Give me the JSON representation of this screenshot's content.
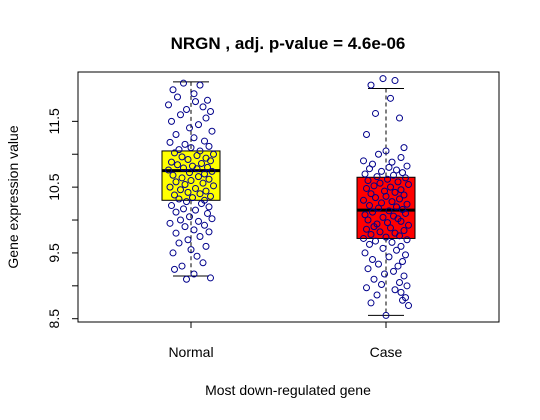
{
  "chart_data": {
    "type": "boxplot",
    "title": "NRGN , adj. p-value = 4.6e-06",
    "xlabel": "Most down-regulated gene",
    "ylabel": "Gene expression value",
    "categories": [
      "Normal",
      "Case"
    ],
    "ylim": [
      8.45,
      12.25
    ],
    "yticks": [
      "8.5",
      "9.5",
      "10.5",
      "11.5"
    ],
    "ytick_values": [
      8.5,
      9.5,
      10.5,
      11.5
    ],
    "grid": false,
    "legend": "none",
    "box_colors": [
      "#ffff00",
      "#ff0000"
    ],
    "point_color": "#00008b",
    "boxes": [
      {
        "name": "Normal",
        "whisker_low": 9.15,
        "q1": 10.3,
        "median": 10.75,
        "q3": 11.05,
        "whisker_high": 12.1,
        "points": [
          [
            -0.05,
            12.08
          ],
          [
            0.06,
            12.05
          ],
          [
            -0.12,
            11.98
          ],
          [
            0.02,
            11.92
          ],
          [
            -0.09,
            11.87
          ],
          [
            0.11,
            11.82
          ],
          [
            0.03,
            11.8
          ],
          [
            -0.15,
            11.75
          ],
          [
            0.08,
            11.72
          ],
          [
            -0.03,
            11.68
          ],
          [
            0.13,
            11.65
          ],
          [
            -0.07,
            11.6
          ],
          [
            0.1,
            11.55
          ],
          [
            -0.13,
            11.5
          ],
          [
            0.05,
            11.45
          ],
          [
            -0.01,
            11.4
          ],
          [
            0.14,
            11.35
          ],
          [
            -0.1,
            11.3
          ],
          [
            0.02,
            11.25
          ],
          [
            0.09,
            11.2
          ],
          [
            -0.14,
            11.18
          ],
          [
            -0.04,
            11.15
          ],
          [
            0.12,
            11.12
          ],
          [
            0.0,
            11.1
          ],
          [
            -0.08,
            11.07
          ],
          [
            0.06,
            11.05
          ],
          [
            -0.11,
            11.02
          ],
          [
            0.15,
            11.0
          ],
          [
            0.04,
            10.98
          ],
          [
            -0.06,
            10.96
          ],
          [
            0.1,
            10.94
          ],
          [
            -0.02,
            10.92
          ],
          [
            0.13,
            10.9
          ],
          [
            -0.13,
            10.88
          ],
          [
            0.07,
            10.86
          ],
          [
            -0.09,
            10.84
          ],
          [
            0.01,
            10.82
          ],
          [
            0.11,
            10.8
          ],
          [
            -0.05,
            10.79
          ],
          [
            0.04,
            10.78
          ],
          [
            -0.15,
            10.76
          ],
          [
            0.14,
            10.74
          ],
          [
            -0.01,
            10.72
          ],
          [
            0.09,
            10.7
          ],
          [
            -0.12,
            10.68
          ],
          [
            0.05,
            10.66
          ],
          [
            -0.06,
            10.64
          ],
          [
            0.12,
            10.62
          ],
          [
            0.0,
            10.6
          ],
          [
            -0.1,
            10.58
          ],
          [
            0.08,
            10.56
          ],
          [
            -0.04,
            10.54
          ],
          [
            0.15,
            10.52
          ],
          [
            -0.14,
            10.5
          ],
          [
            0.03,
            10.48
          ],
          [
            -0.07,
            10.46
          ],
          [
            0.1,
            10.44
          ],
          [
            -0.02,
            10.42
          ],
          [
            0.06,
            10.4
          ],
          [
            -0.11,
            10.38
          ],
          [
            0.13,
            10.36
          ],
          [
            0.01,
            10.34
          ],
          [
            -0.08,
            10.32
          ],
          [
            0.09,
            10.3
          ],
          [
            -0.03,
            10.28
          ],
          [
            0.07,
            10.25
          ],
          [
            -0.13,
            10.22
          ],
          [
            0.12,
            10.2
          ],
          [
            -0.05,
            10.17
          ],
          [
            0.03,
            10.15
          ],
          [
            -0.1,
            10.12
          ],
          [
            0.11,
            10.1
          ],
          [
            -0.01,
            10.05
          ],
          [
            0.14,
            10.02
          ],
          [
            -0.07,
            10.0
          ],
          [
            0.05,
            9.98
          ],
          [
            -0.14,
            9.95
          ],
          [
            0.09,
            9.92
          ],
          [
            -0.04,
            9.9
          ],
          [
            0.02,
            9.85
          ],
          [
            0.12,
            9.82
          ],
          [
            -0.1,
            9.8
          ],
          [
            0.06,
            9.75
          ],
          [
            -0.02,
            9.7
          ],
          [
            -0.08,
            9.65
          ],
          [
            0.1,
            9.6
          ],
          [
            0.0,
            9.55
          ],
          [
            -0.12,
            9.5
          ],
          [
            0.04,
            9.45
          ],
          [
            0.08,
            9.35
          ],
          [
            -0.06,
            9.3
          ],
          [
            -0.11,
            9.25
          ],
          [
            0.02,
            9.18
          ],
          [
            0.13,
            9.12
          ],
          [
            -0.03,
            9.1
          ]
        ]
      },
      {
        "name": "Case",
        "whisker_low": 8.55,
        "q1": 9.72,
        "median": 10.15,
        "q3": 10.65,
        "whisker_high": 12.0,
        "points": [
          [
            -0.02,
            12.15
          ],
          [
            0.06,
            12.12
          ],
          [
            -0.1,
            12.05
          ],
          [
            0.03,
            11.85
          ],
          [
            -0.07,
            11.62
          ],
          [
            0.09,
            11.55
          ],
          [
            -0.13,
            11.3
          ],
          [
            0.12,
            11.1
          ],
          [
            0.0,
            11.05
          ],
          [
            -0.05,
            11.0
          ],
          [
            0.1,
            10.95
          ],
          [
            -0.15,
            10.9
          ],
          [
            0.04,
            10.88
          ],
          [
            -0.09,
            10.85
          ],
          [
            0.14,
            10.82
          ],
          [
            0.02,
            10.8
          ],
          [
            -0.11,
            10.78
          ],
          [
            0.07,
            10.76
          ],
          [
            -0.03,
            10.74
          ],
          [
            0.11,
            10.72
          ],
          [
            -0.14,
            10.7
          ],
          [
            0.05,
            10.68
          ],
          [
            -0.06,
            10.66
          ],
          [
            0.13,
            10.64
          ],
          [
            0.01,
            10.62
          ],
          [
            -0.12,
            10.6
          ],
          [
            0.08,
            10.58
          ],
          [
            -0.04,
            10.56
          ],
          [
            0.15,
            10.54
          ],
          [
            -0.08,
            10.52
          ],
          [
            0.03,
            10.5
          ],
          [
            -0.13,
            10.48
          ],
          [
            0.1,
            10.46
          ],
          [
            -0.01,
            10.44
          ],
          [
            0.06,
            10.42
          ],
          [
            -0.1,
            10.4
          ],
          [
            0.12,
            10.38
          ],
          [
            0.0,
            10.36
          ],
          [
            -0.07,
            10.34
          ],
          [
            0.09,
            10.32
          ],
          [
            -0.15,
            10.3
          ],
          [
            0.04,
            10.28
          ],
          [
            -0.03,
            10.26
          ],
          [
            0.14,
            10.24
          ],
          [
            -0.11,
            10.22
          ],
          [
            0.07,
            10.2
          ],
          [
            -0.05,
            10.18
          ],
          [
            0.11,
            10.16
          ],
          [
            0.02,
            10.14
          ],
          [
            -0.09,
            10.12
          ],
          [
            0.13,
            10.1
          ],
          [
            -0.14,
            10.08
          ],
          [
            0.05,
            10.06
          ],
          [
            -0.02,
            10.04
          ],
          [
            0.08,
            10.02
          ],
          [
            -0.12,
            10.0
          ],
          [
            0.1,
            9.98
          ],
          [
            0.01,
            9.96
          ],
          [
            -0.06,
            9.94
          ],
          [
            0.15,
            9.92
          ],
          [
            -0.08,
            9.9
          ],
          [
            0.03,
            9.88
          ],
          [
            -0.13,
            9.86
          ],
          [
            0.12,
            9.84
          ],
          [
            -0.04,
            9.82
          ],
          [
            0.06,
            9.8
          ],
          [
            -0.1,
            9.78
          ],
          [
            0.09,
            9.76
          ],
          [
            0.0,
            9.74
          ],
          [
            -0.15,
            9.72
          ],
          [
            0.14,
            9.7
          ],
          [
            -0.07,
            9.68
          ],
          [
            0.04,
            9.66
          ],
          [
            -0.11,
            9.63
          ],
          [
            0.1,
            9.6
          ],
          [
            -0.02,
            9.57
          ],
          [
            0.07,
            9.54
          ],
          [
            -0.14,
            9.5
          ],
          [
            0.13,
            9.47
          ],
          [
            0.02,
            9.44
          ],
          [
            -0.09,
            9.4
          ],
          [
            0.11,
            9.37
          ],
          [
            -0.05,
            9.33
          ],
          [
            0.08,
            9.3
          ],
          [
            -0.12,
            9.26
          ],
          [
            0.05,
            9.22
          ],
          [
            -0.01,
            9.18
          ],
          [
            0.12,
            9.15
          ],
          [
            -0.08,
            9.1
          ],
          [
            0.09,
            9.05
          ],
          [
            -0.03,
            9.02
          ],
          [
            0.14,
            9.0
          ],
          [
            -0.13,
            8.97
          ],
          [
            0.06,
            8.94
          ],
          [
            0.1,
            8.9
          ],
          [
            -0.06,
            8.86
          ],
          [
            0.13,
            8.82
          ],
          [
            0.11,
            8.78
          ],
          [
            -0.1,
            8.74
          ],
          [
            0.15,
            8.7
          ],
          [
            0.0,
            8.55
          ]
        ]
      }
    ]
  }
}
